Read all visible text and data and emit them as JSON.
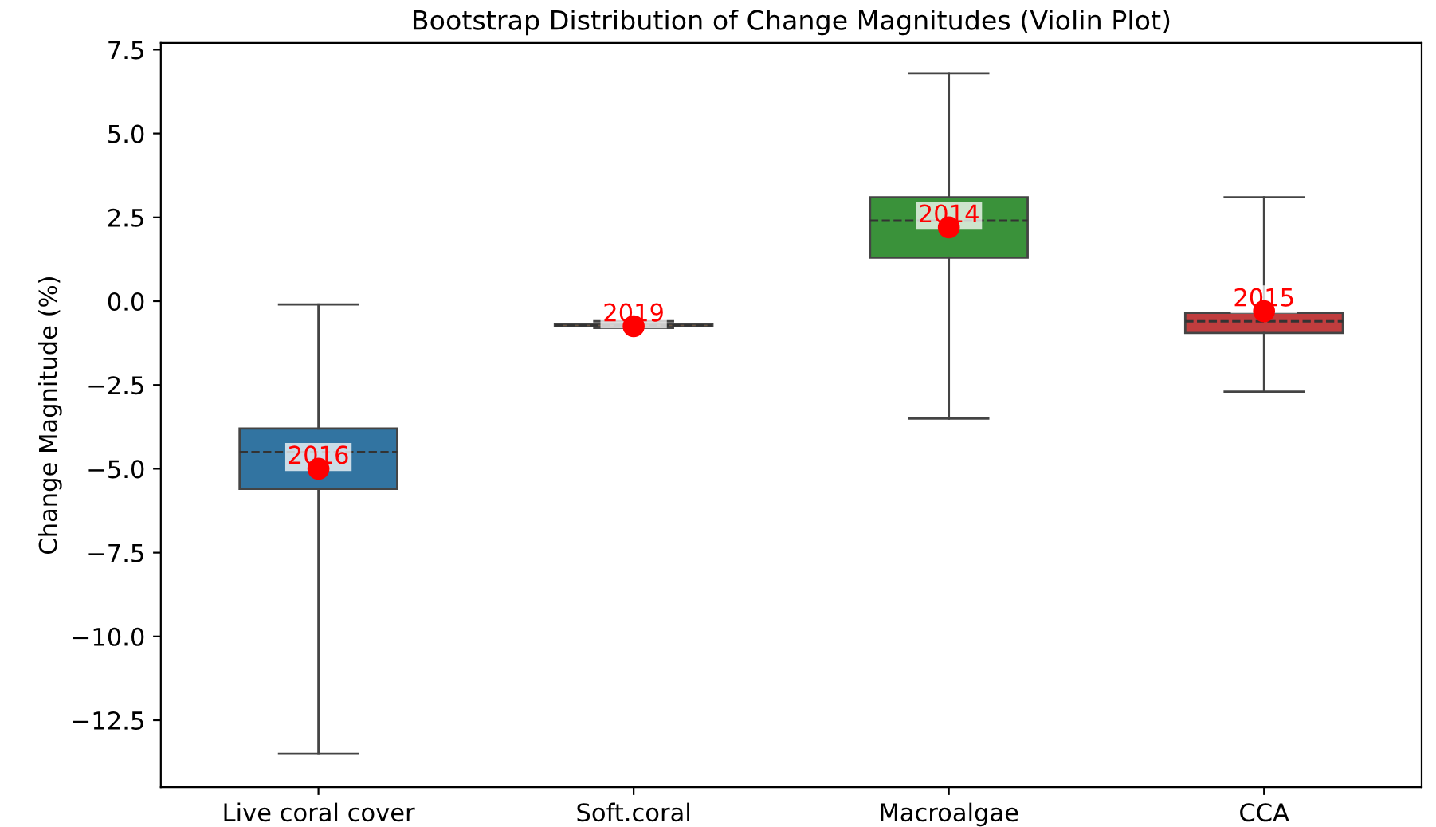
{
  "chart_data": {
    "type": "box",
    "title": "Bootstrap Distribution of Change Magnitudes (Violin Plot)",
    "ylabel": "Change Magnitude (%)",
    "categories": [
      "Live coral cover",
      "Soft.coral",
      "Macroalgae",
      "CCA"
    ],
    "colors": [
      "#3274a1",
      "#e1812c",
      "#3a923a",
      "#c03d3e"
    ],
    "boxes": [
      {
        "low": -13.5,
        "q1": -5.6,
        "median": -4.5,
        "q3": -3.8,
        "high": -0.1
      },
      {
        "low": -0.8,
        "q1": -0.75,
        "median": -0.72,
        "q3": -0.68,
        "high": -0.6
      },
      {
        "low": -3.5,
        "q1": 1.3,
        "median": 2.4,
        "q3": 3.1,
        "high": 6.8
      },
      {
        "low": -2.7,
        "q1": -0.95,
        "median": -0.6,
        "q3": -0.35,
        "high": 3.1
      }
    ],
    "series": [
      {
        "type": "scatter",
        "color": "#ff0000",
        "x": [
          "Live coral cover",
          "Soft.coral",
          "Macroalgae",
          "CCA"
        ],
        "values": [
          -5.0,
          -0.75,
          2.2,
          -0.3
        ]
      }
    ],
    "annotations": [
      {
        "text": "2016",
        "x": "Live coral cover",
        "y": -5.0
      },
      {
        "text": "2019",
        "x": "Soft.coral",
        "y": -0.75
      },
      {
        "text": "2014",
        "x": "Macroalgae",
        "y": 2.2
      },
      {
        "text": "2015",
        "x": "CCA",
        "y": -0.3
      }
    ],
    "ylim": [
      -14.5,
      7.7
    ],
    "yticks": [
      {
        "value": -12.5,
        "label": "−12.5"
      },
      {
        "value": -10,
        "label": "−10.0"
      },
      {
        "value": -7.5,
        "label": "−7.5"
      },
      {
        "value": -5,
        "label": "−5.0"
      },
      {
        "value": -2.5,
        "label": "−2.5"
      },
      {
        "value": 0,
        "label": "0.0"
      },
      {
        "value": 2.5,
        "label": "2.5"
      },
      {
        "value": 5,
        "label": "5.0"
      },
      {
        "value": 7.5,
        "label": "7.5"
      }
    ],
    "grid": false,
    "legend": false
  }
}
